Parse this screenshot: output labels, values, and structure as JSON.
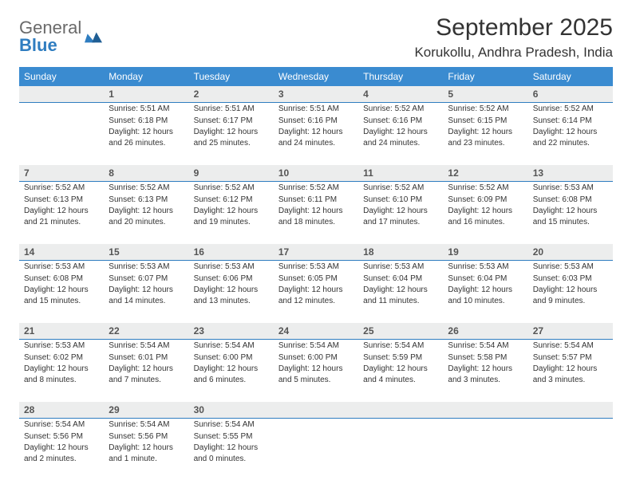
{
  "brand": {
    "part1": "General",
    "part2": "Blue"
  },
  "title": "September 2025",
  "location": "Korukollu, Andhra Pradesh, India",
  "day_names": [
    "Sunday",
    "Monday",
    "Tuesday",
    "Wednesday",
    "Thursday",
    "Friday",
    "Saturday"
  ],
  "colors": {
    "header_bg": "#3a8bd0",
    "rule": "#2f7dc0",
    "datebar_bg": "#eceded",
    "text": "#333333"
  },
  "weeks": [
    [
      {
        "n": "",
        "sr": "",
        "ss": "",
        "dl": ""
      },
      {
        "n": "1",
        "sr": "Sunrise: 5:51 AM",
        "ss": "Sunset: 6:18 PM",
        "dl": "Daylight: 12 hours and 26 minutes."
      },
      {
        "n": "2",
        "sr": "Sunrise: 5:51 AM",
        "ss": "Sunset: 6:17 PM",
        "dl": "Daylight: 12 hours and 25 minutes."
      },
      {
        "n": "3",
        "sr": "Sunrise: 5:51 AM",
        "ss": "Sunset: 6:16 PM",
        "dl": "Daylight: 12 hours and 24 minutes."
      },
      {
        "n": "4",
        "sr": "Sunrise: 5:52 AM",
        "ss": "Sunset: 6:16 PM",
        "dl": "Daylight: 12 hours and 24 minutes."
      },
      {
        "n": "5",
        "sr": "Sunrise: 5:52 AM",
        "ss": "Sunset: 6:15 PM",
        "dl": "Daylight: 12 hours and 23 minutes."
      },
      {
        "n": "6",
        "sr": "Sunrise: 5:52 AM",
        "ss": "Sunset: 6:14 PM",
        "dl": "Daylight: 12 hours and 22 minutes."
      }
    ],
    [
      {
        "n": "7",
        "sr": "Sunrise: 5:52 AM",
        "ss": "Sunset: 6:13 PM",
        "dl": "Daylight: 12 hours and 21 minutes."
      },
      {
        "n": "8",
        "sr": "Sunrise: 5:52 AM",
        "ss": "Sunset: 6:13 PM",
        "dl": "Daylight: 12 hours and 20 minutes."
      },
      {
        "n": "9",
        "sr": "Sunrise: 5:52 AM",
        "ss": "Sunset: 6:12 PM",
        "dl": "Daylight: 12 hours and 19 minutes."
      },
      {
        "n": "10",
        "sr": "Sunrise: 5:52 AM",
        "ss": "Sunset: 6:11 PM",
        "dl": "Daylight: 12 hours and 18 minutes."
      },
      {
        "n": "11",
        "sr": "Sunrise: 5:52 AM",
        "ss": "Sunset: 6:10 PM",
        "dl": "Daylight: 12 hours and 17 minutes."
      },
      {
        "n": "12",
        "sr": "Sunrise: 5:52 AM",
        "ss": "Sunset: 6:09 PM",
        "dl": "Daylight: 12 hours and 16 minutes."
      },
      {
        "n": "13",
        "sr": "Sunrise: 5:53 AM",
        "ss": "Sunset: 6:08 PM",
        "dl": "Daylight: 12 hours and 15 minutes."
      }
    ],
    [
      {
        "n": "14",
        "sr": "Sunrise: 5:53 AM",
        "ss": "Sunset: 6:08 PM",
        "dl": "Daylight: 12 hours and 15 minutes."
      },
      {
        "n": "15",
        "sr": "Sunrise: 5:53 AM",
        "ss": "Sunset: 6:07 PM",
        "dl": "Daylight: 12 hours and 14 minutes."
      },
      {
        "n": "16",
        "sr": "Sunrise: 5:53 AM",
        "ss": "Sunset: 6:06 PM",
        "dl": "Daylight: 12 hours and 13 minutes."
      },
      {
        "n": "17",
        "sr": "Sunrise: 5:53 AM",
        "ss": "Sunset: 6:05 PM",
        "dl": "Daylight: 12 hours and 12 minutes."
      },
      {
        "n": "18",
        "sr": "Sunrise: 5:53 AM",
        "ss": "Sunset: 6:04 PM",
        "dl": "Daylight: 12 hours and 11 minutes."
      },
      {
        "n": "19",
        "sr": "Sunrise: 5:53 AM",
        "ss": "Sunset: 6:04 PM",
        "dl": "Daylight: 12 hours and 10 minutes."
      },
      {
        "n": "20",
        "sr": "Sunrise: 5:53 AM",
        "ss": "Sunset: 6:03 PM",
        "dl": "Daylight: 12 hours and 9 minutes."
      }
    ],
    [
      {
        "n": "21",
        "sr": "Sunrise: 5:53 AM",
        "ss": "Sunset: 6:02 PM",
        "dl": "Daylight: 12 hours and 8 minutes."
      },
      {
        "n": "22",
        "sr": "Sunrise: 5:54 AM",
        "ss": "Sunset: 6:01 PM",
        "dl": "Daylight: 12 hours and 7 minutes."
      },
      {
        "n": "23",
        "sr": "Sunrise: 5:54 AM",
        "ss": "Sunset: 6:00 PM",
        "dl": "Daylight: 12 hours and 6 minutes."
      },
      {
        "n": "24",
        "sr": "Sunrise: 5:54 AM",
        "ss": "Sunset: 6:00 PM",
        "dl": "Daylight: 12 hours and 5 minutes."
      },
      {
        "n": "25",
        "sr": "Sunrise: 5:54 AM",
        "ss": "Sunset: 5:59 PM",
        "dl": "Daylight: 12 hours and 4 minutes."
      },
      {
        "n": "26",
        "sr": "Sunrise: 5:54 AM",
        "ss": "Sunset: 5:58 PM",
        "dl": "Daylight: 12 hours and 3 minutes."
      },
      {
        "n": "27",
        "sr": "Sunrise: 5:54 AM",
        "ss": "Sunset: 5:57 PM",
        "dl": "Daylight: 12 hours and 3 minutes."
      }
    ],
    [
      {
        "n": "28",
        "sr": "Sunrise: 5:54 AM",
        "ss": "Sunset: 5:56 PM",
        "dl": "Daylight: 12 hours and 2 minutes."
      },
      {
        "n": "29",
        "sr": "Sunrise: 5:54 AM",
        "ss": "Sunset: 5:56 PM",
        "dl": "Daylight: 12 hours and 1 minute."
      },
      {
        "n": "30",
        "sr": "Sunrise: 5:54 AM",
        "ss": "Sunset: 5:55 PM",
        "dl": "Daylight: 12 hours and 0 minutes."
      },
      {
        "n": "",
        "sr": "",
        "ss": "",
        "dl": ""
      },
      {
        "n": "",
        "sr": "",
        "ss": "",
        "dl": ""
      },
      {
        "n": "",
        "sr": "",
        "ss": "",
        "dl": ""
      },
      {
        "n": "",
        "sr": "",
        "ss": "",
        "dl": ""
      }
    ]
  ]
}
